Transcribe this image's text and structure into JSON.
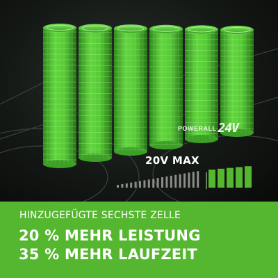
{
  "brand": {
    "prefix": "POWERALL",
    "voltage": "24V"
  },
  "voltage_label": "20V MAX",
  "headline": {
    "subtitle": "HINZUGEFÜGTE SECHSTE ZELLE",
    "line1": "20 % MEHR LEISTUNG",
    "line2": "35 % MEHR LAUFZEIT"
  },
  "cells": {
    "count": 6
  },
  "meter": {
    "bars": 19,
    "bars_highlighted": 5
  },
  "colors": {
    "accent": "#55b62f",
    "cell_green": "#5fd33b",
    "cell_dark": "#2e8a1c",
    "meter_gray": "#8a8d8a"
  }
}
